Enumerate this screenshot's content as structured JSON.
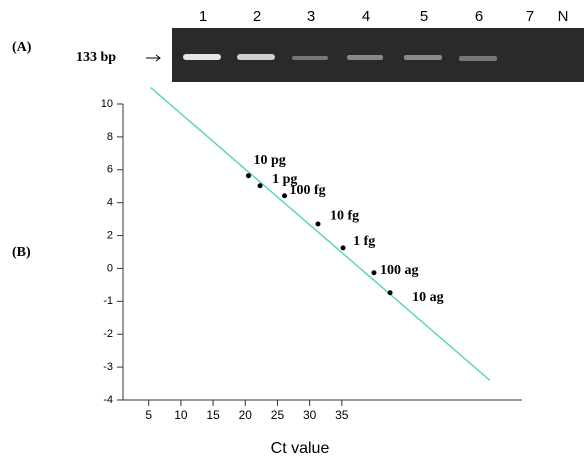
{
  "panel_a": {
    "label": "(A)",
    "marker": "133 bp",
    "lanes": [
      "1",
      "2",
      "3",
      "4",
      "5",
      "6",
      "7",
      "N"
    ]
  },
  "panel_b": {
    "label": "(B)"
  },
  "chart_data": {
    "type": "scatter",
    "xlabel": "Ct value",
    "x": [
      20.5,
      22.3,
      26.1,
      31.3,
      35.2,
      40.0,
      42.5
    ],
    "series": [
      {
        "color": "#000000",
        "values": [
          5.64,
          5.03,
          4.42,
          2.7,
          1.25,
          -0.13,
          -0.74
        ],
        "labels": [
          "10 pg",
          "1 pg",
          "100 fg",
          "10 fg",
          "1 fg",
          "100 ag",
          "10 ag"
        ]
      }
    ],
    "fit_line": {
      "color": "#5fd4c0",
      "x": [
        5.3,
        58
      ],
      "y": [
        11,
        -3.4
      ]
    },
    "xlim": [
      1,
      63
    ],
    "xticks": [
      5,
      10,
      15,
      20,
      25,
      30,
      35
    ],
    "ylim": [
      -4,
      10
    ],
    "yticks": [
      10,
      8,
      6,
      4,
      2,
      0,
      -1,
      -2,
      -3,
      -4
    ]
  }
}
